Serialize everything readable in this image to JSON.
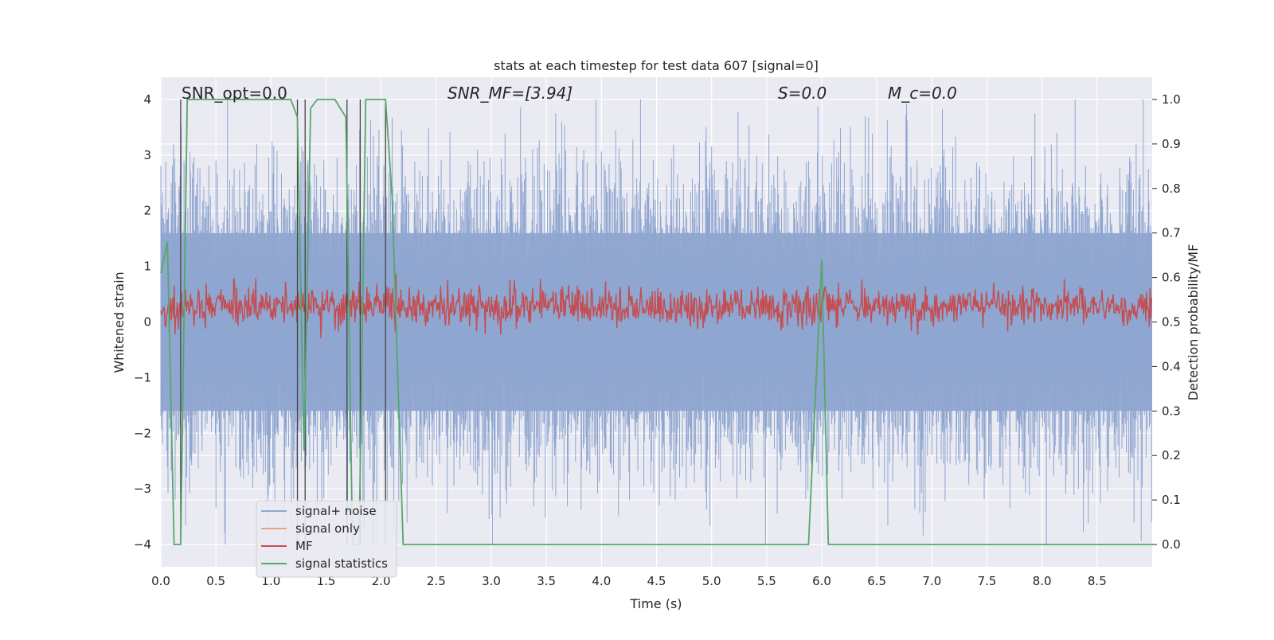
{
  "chart_data": {
    "type": "line",
    "title": "stats at each timestep for test data 607 [signal=0]",
    "xlabel": "Time (s)",
    "ylabel": "Whitened strain",
    "ylabel_right": "Detection probability/MF",
    "xlim": [
      0.0,
      9.0
    ],
    "ylim": [
      -4.4,
      4.4
    ],
    "ylim_right": [
      -0.05,
      1.05
    ],
    "x_ticks": [
      "0.0",
      "0.5",
      "1.0",
      "1.5",
      "2.0",
      "2.5",
      "3.0",
      "3.5",
      "4.0",
      "4.5",
      "5.0",
      "5.5",
      "6.0",
      "6.5",
      "7.0",
      "7.5",
      "8.0",
      "8.5"
    ],
    "y_ticks": [
      "−4",
      "−3",
      "−2",
      "−1",
      "0",
      "1",
      "2",
      "3",
      "4"
    ],
    "y_ticks_right": [
      "0.0",
      "0.1",
      "0.2",
      "0.3",
      "0.4",
      "0.5",
      "0.6",
      "0.7",
      "0.8",
      "0.9",
      "1.0"
    ],
    "grid": true,
    "legend_position": "lower-left",
    "annotations": [
      {
        "id": "snr_opt",
        "text": "SNR_opt=0.0"
      },
      {
        "id": "snr_mf",
        "text": "SNR_MF=[3.94]"
      },
      {
        "id": "s",
        "text": "S=0.0"
      },
      {
        "id": "mc",
        "text": "M_c=0.0"
      }
    ],
    "series": [
      {
        "name": "signal+ noise",
        "color": "#8fa6d0",
        "style": "dense noise, amplitude approx ±2.5 with spikes to ±4",
        "axis": "left"
      },
      {
        "name": "signal only",
        "color": "#e8a47f",
        "values": [],
        "axis": "left"
      },
      {
        "name": "MF",
        "color": "#c44e52",
        "style": "dense noise around 0.53 (right axis) ranging 0.45–0.62",
        "axis": "right"
      },
      {
        "name": "signal statistics",
        "color": "#55a868",
        "axis": "right",
        "x": [
          0.0,
          0.06,
          0.12,
          0.18,
          0.24,
          0.3,
          1.18,
          1.24,
          1.3,
          1.36,
          1.42,
          1.48,
          1.58,
          1.68,
          1.74,
          1.8,
          1.86,
          1.92,
          2.04,
          2.1,
          2.2,
          5.88,
          6.0,
          6.06,
          9.0
        ],
        "y": [
          0.61,
          0.68,
          0.0,
          0.0,
          1.0,
          1.0,
          1.0,
          0.96,
          0.21,
          0.98,
          1.0,
          1.0,
          1.0,
          0.96,
          0.0,
          0.0,
          1.0,
          1.0,
          1.0,
          0.78,
          0.0,
          0.0,
          0.64,
          0.0,
          0.0
        ]
      }
    ],
    "vertical_markers_x": [
      0.18,
      1.24,
      1.31,
      1.69,
      1.81,
      2.04
    ],
    "noise_envelope": {
      "dense_band": [
        -1.6,
        1.6
      ],
      "spikes_up_max": 4.0,
      "spikes_down_min": -4.0
    }
  },
  "colors": {
    "plot_bg": "#eaeaf2",
    "grid": "#ffffff",
    "noise": "#8fa6d0",
    "mf": "#c44e52",
    "stat": "#55a868",
    "vline": "#444444"
  }
}
